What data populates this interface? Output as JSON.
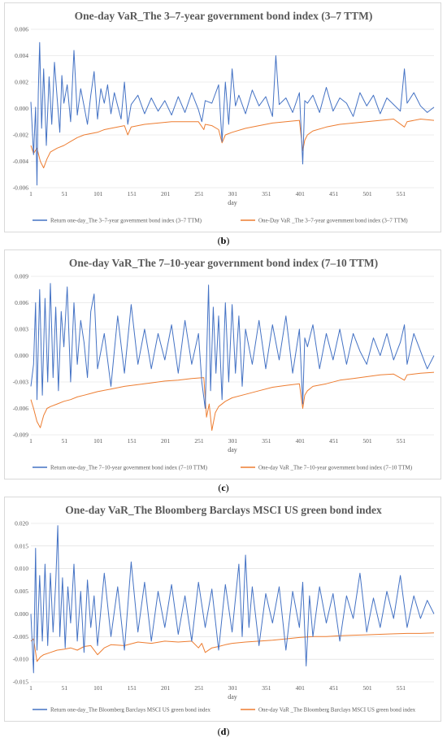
{
  "colors": {
    "return": "#4472C4",
    "var": "#ED7D31",
    "grid": "#d9d9d9",
    "text": "#595959"
  },
  "chart_data": [
    {
      "type": "line",
      "title": "One-day VaR_The 3–7-year government bond index (3–7 TTM)",
      "xlabel": "day",
      "ylabel": "",
      "xlim": [
        1,
        600
      ],
      "ylim": [
        -0.006,
        0.006
      ],
      "x_ticks": [
        "1",
        "51",
        "101",
        "151",
        "201",
        "251",
        "301",
        "351",
        "401",
        "451",
        "501",
        "551"
      ],
      "y_ticks": [
        "0.006",
        "0.004",
        "0.002",
        "0.000",
        "-0.002",
        "-0.004",
        "-0.006"
      ],
      "y_tick_values": [
        0.006,
        0.004,
        0.002,
        0.0,
        -0.002,
        -0.004,
        -0.006
      ],
      "grid": true,
      "legend": "bottom",
      "series": [
        {
          "name": "Return one-day_The 3–7-year government bond index (3–7 TTM)",
          "x": [
            1,
            5,
            8,
            10,
            12,
            14,
            17,
            20,
            24,
            28,
            32,
            36,
            40,
            44,
            47,
            50,
            55,
            60,
            65,
            70,
            75,
            80,
            85,
            90,
            95,
            100,
            105,
            110,
            115,
            120,
            125,
            130,
            135,
            140,
            145,
            150,
            160,
            170,
            180,
            190,
            200,
            210,
            220,
            230,
            240,
            250,
            255,
            260,
            270,
            280,
            285,
            290,
            295,
            300,
            305,
            310,
            320,
            330,
            340,
            350,
            360,
            365,
            370,
            380,
            390,
            400,
            405,
            408,
            412,
            420,
            430,
            440,
            450,
            460,
            470,
            480,
            490,
            500,
            510,
            520,
            530,
            540,
            550,
            556,
            560,
            570,
            580,
            590,
            600
          ],
          "values": [
            0.0005,
            -0.0035,
            0.0001,
            -0.0058,
            0.0012,
            0.005,
            -0.0015,
            0.003,
            -0.0028,
            0.0024,
            -0.0012,
            0.0035,
            0.0008,
            -0.0018,
            0.0025,
            0.0004,
            0.0018,
            -0.001,
            0.0044,
            -0.0005,
            0.0015,
            0.0002,
            -0.0012,
            0.001,
            0.0028,
            -0.0008,
            0.0015,
            0.0004,
            0.0018,
            -0.0004,
            0.0012,
            0.0002,
            -0.0008,
            0.002,
            -0.0012,
            0.0003,
            0.001,
            -0.0004,
            0.0008,
            -0.0002,
            0.0006,
            -0.0005,
            0.0009,
            -0.0003,
            0.0012,
            -0.0001,
            -0.001,
            0.0006,
            0.0004,
            0.0018,
            -0.0025,
            0.002,
            -0.0012,
            0.003,
            0.0002,
            0.001,
            -0.0004,
            0.0014,
            0.0002,
            0.0009,
            -0.0006,
            0.004,
            0.0003,
            0.0008,
            -0.0003,
            0.0012,
            -0.0042,
            0.0006,
            0.0004,
            0.001,
            -0.0003,
            0.0016,
            -0.0002,
            0.0008,
            0.0004,
            -0.0006,
            0.0012,
            0.0002,
            0.001,
            -0.0004,
            0.0008,
            0.0003,
            -0.0002,
            0.003,
            0.0004,
            0.0012,
            0.0002,
            -0.0003,
            0.0001
          ]
        },
        {
          "name": "One-Day VaR _The 3–7-year government bond index (3–7 TTM)",
          "x": [
            1,
            5,
            10,
            15,
            20,
            25,
            30,
            40,
            50,
            60,
            70,
            80,
            90,
            100,
            110,
            120,
            130,
            140,
            145,
            150,
            170,
            190,
            210,
            230,
            250,
            258,
            260,
            270,
            280,
            285,
            290,
            300,
            320,
            340,
            360,
            380,
            400,
            405,
            408,
            412,
            420,
            440,
            460,
            480,
            500,
            520,
            540,
            556,
            560,
            580,
            600
          ],
          "values": [
            -0.0028,
            -0.0034,
            -0.003,
            -0.004,
            -0.0045,
            -0.0038,
            -0.0033,
            -0.003,
            -0.0028,
            -0.0025,
            -0.0022,
            -0.002,
            -0.0019,
            -0.0018,
            -0.0016,
            -0.0015,
            -0.0014,
            -0.0013,
            -0.002,
            -0.0014,
            -0.0012,
            -0.0011,
            -0.001,
            -0.001,
            -0.001,
            -0.0016,
            -0.0012,
            -0.0013,
            -0.0016,
            -0.0026,
            -0.002,
            -0.0018,
            -0.0015,
            -0.0013,
            -0.0011,
            -0.001,
            -0.0009,
            -0.0032,
            -0.0024,
            -0.002,
            -0.0017,
            -0.0014,
            -0.0012,
            -0.0011,
            -0.001,
            -0.0009,
            -0.0008,
            -0.0014,
            -0.001,
            -0.0008,
            -0.0009
          ]
        }
      ]
    },
    {
      "type": "line",
      "title": "One-day VaR_The 7–10-year government bond index (7–10 TTM)",
      "xlabel": "day",
      "ylabel": "",
      "xlim": [
        1,
        600
      ],
      "ylim": [
        -0.009,
        0.009
      ],
      "x_ticks": [
        "1",
        "51",
        "101",
        "151",
        "201",
        "251",
        "301",
        "351",
        "401",
        "451",
        "501",
        "551"
      ],
      "y_ticks": [
        "0.009",
        "0.006",
        "0.003",
        "0.000",
        "-0.003",
        "-0.006",
        "-0.009"
      ],
      "y_tick_values": [
        0.009,
        0.006,
        0.003,
        0.0,
        -0.003,
        -0.006,
        -0.009
      ],
      "grid": true,
      "legend": "bottom",
      "series": [
        {
          "name": "Return one-day_The 7–10-year government bond index (7–10 TTM)",
          "x": [
            1,
            5,
            8,
            10,
            14,
            18,
            22,
            26,
            30,
            34,
            38,
            42,
            46,
            50,
            55,
            60,
            65,
            70,
            75,
            80,
            85,
            90,
            95,
            100,
            110,
            120,
            130,
            140,
            150,
            160,
            170,
            180,
            190,
            200,
            210,
            220,
            230,
            240,
            250,
            255,
            260,
            265,
            268,
            272,
            276,
            280,
            285,
            290,
            295,
            300,
            305,
            310,
            315,
            320,
            330,
            340,
            350,
            360,
            370,
            380,
            390,
            400,
            405,
            408,
            412,
            420,
            430,
            440,
            450,
            460,
            470,
            480,
            490,
            500,
            510,
            520,
            530,
            540,
            550,
            556,
            560,
            570,
            580,
            590,
            600
          ],
          "values": [
            -0.0035,
            -0.001,
            0.006,
            -0.005,
            0.0075,
            -0.0045,
            0.0065,
            -0.003,
            0.0082,
            -0.0025,
            0.0055,
            -0.004,
            0.005,
            0.001,
            0.0078,
            -0.003,
            0.006,
            -0.001,
            0.004,
            0.0015,
            -0.0025,
            0.005,
            0.007,
            -0.0015,
            0.0025,
            -0.0035,
            0.0045,
            -0.002,
            0.0058,
            -0.001,
            0.003,
            -0.0015,
            0.0025,
            -0.0005,
            0.0035,
            -0.002,
            0.004,
            -0.001,
            0.0025,
            -0.003,
            -0.006,
            0.008,
            -0.004,
            0.0055,
            -0.002,
            0.0045,
            -0.005,
            0.006,
            -0.003,
            0.0058,
            -0.002,
            0.0045,
            -0.0035,
            0.003,
            -0.001,
            0.004,
            -0.0015,
            0.0035,
            -0.0005,
            0.0045,
            -0.002,
            0.003,
            -0.0055,
            0.002,
            0.001,
            0.0035,
            -0.0015,
            0.0025,
            -0.0005,
            0.003,
            -0.001,
            0.0025,
            0.0005,
            -0.001,
            0.002,
            0.0,
            0.0025,
            -0.0005,
            0.0015,
            0.0035,
            -0.001,
            0.0025,
            0.0005,
            -0.0015,
            0.0
          ]
        },
        {
          "name": "One-day VaR _The 7–10-year government bond index (7–10 TTM)",
          "x": [
            1,
            5,
            10,
            15,
            20,
            25,
            30,
            40,
            50,
            60,
            70,
            80,
            90,
            100,
            120,
            140,
            160,
            180,
            200,
            220,
            240,
            258,
            262,
            266,
            270,
            275,
            280,
            290,
            300,
            320,
            340,
            360,
            380,
            400,
            405,
            408,
            412,
            420,
            440,
            460,
            480,
            500,
            520,
            540,
            556,
            560,
            580,
            600
          ],
          "values": [
            -0.005,
            -0.006,
            -0.0075,
            -0.0082,
            -0.0068,
            -0.006,
            -0.0058,
            -0.0055,
            -0.0052,
            -0.005,
            -0.0047,
            -0.0045,
            -0.0043,
            -0.0041,
            -0.0038,
            -0.0035,
            -0.0033,
            -0.0031,
            -0.0029,
            -0.0028,
            -0.0026,
            -0.0025,
            -0.007,
            -0.0055,
            -0.0085,
            -0.0065,
            -0.0058,
            -0.0052,
            -0.0048,
            -0.0044,
            -0.004,
            -0.0036,
            -0.0034,
            -0.0032,
            -0.006,
            -0.0045,
            -0.004,
            -0.0035,
            -0.0032,
            -0.0028,
            -0.0026,
            -0.0024,
            -0.0022,
            -0.0021,
            -0.0028,
            -0.0022,
            -0.002,
            -0.0019
          ]
        }
      ]
    },
    {
      "type": "line",
      "title": "One-day VaR_The Bloomberg Barclays MSCI US green bond index",
      "xlabel": "day",
      "ylabel": "",
      "xlim": [
        1,
        600
      ],
      "ylim": [
        -0.015,
        0.02
      ],
      "x_ticks": [
        "1",
        "51",
        "101",
        "151",
        "201",
        "251",
        "301",
        "351",
        "401",
        "451",
        "501",
        "551"
      ],
      "y_ticks": [
        "0.020",
        "0.015",
        "0.010",
        "0.005",
        "0.000",
        "-0.005",
        "-0.010",
        "-0.015"
      ],
      "y_tick_values": [
        0.02,
        0.015,
        0.01,
        0.005,
        0.0,
        -0.005,
        -0.01,
        -0.015
      ],
      "grid": true,
      "legend": "bottom",
      "series": [
        {
          "name": "Return one-day_The Bloomberg Barclays MSCI US green bond index",
          "x": [
            1,
            5,
            8,
            10,
            14,
            18,
            22,
            26,
            30,
            34,
            38,
            41,
            44,
            48,
            52,
            56,
            60,
            65,
            70,
            75,
            80,
            85,
            90,
            95,
            100,
            110,
            120,
            130,
            140,
            150,
            160,
            170,
            180,
            190,
            200,
            210,
            220,
            230,
            240,
            250,
            260,
            270,
            280,
            290,
            300,
            310,
            315,
            320,
            325,
            330,
            340,
            350,
            360,
            370,
            380,
            390,
            400,
            405,
            410,
            415,
            420,
            430,
            440,
            450,
            460,
            470,
            480,
            490,
            500,
            510,
            520,
            530,
            540,
            550,
            560,
            570,
            580,
            590,
            600
          ],
          "values": [
            0.0,
            -0.013,
            0.0145,
            -0.008,
            0.0085,
            -0.006,
            0.011,
            -0.007,
            0.009,
            -0.004,
            0.007,
            0.0195,
            -0.005,
            0.008,
            -0.0075,
            0.006,
            -0.002,
            0.011,
            -0.006,
            0.005,
            -0.0085,
            0.0075,
            -0.003,
            0.004,
            -0.007,
            0.009,
            -0.005,
            0.006,
            -0.008,
            0.0115,
            -0.004,
            0.007,
            -0.006,
            0.005,
            -0.003,
            0.0065,
            -0.0045,
            0.004,
            -0.006,
            0.007,
            -0.003,
            0.0055,
            -0.008,
            0.0065,
            -0.004,
            0.011,
            -0.005,
            0.013,
            -0.003,
            0.006,
            -0.007,
            0.0045,
            -0.002,
            0.006,
            -0.008,
            0.005,
            -0.003,
            0.007,
            -0.0115,
            0.004,
            -0.005,
            0.006,
            -0.002,
            0.0045,
            -0.006,
            0.004,
            -0.001,
            0.009,
            -0.004,
            0.0035,
            -0.003,
            0.005,
            -0.001,
            0.0085,
            -0.003,
            0.004,
            -0.001,
            0.003,
            0.0
          ]
        },
        {
          "name": "One-day VaR _The Bloomberg Barclays MSCI US green bond index",
          "x": [
            1,
            5,
            10,
            15,
            20,
            30,
            40,
            50,
            60,
            70,
            80,
            90,
            100,
            110,
            120,
            140,
            160,
            180,
            200,
            220,
            240,
            250,
            255,
            260,
            270,
            280,
            290,
            300,
            320,
            340,
            360,
            380,
            400,
            420,
            440,
            460,
            480,
            500,
            520,
            540,
            560,
            580,
            600
          ],
          "values": [
            -0.006,
            -0.0055,
            -0.0105,
            -0.0095,
            -0.009,
            -0.0085,
            -0.008,
            -0.0078,
            -0.0075,
            -0.008,
            -0.0072,
            -0.007,
            -0.009,
            -0.0075,
            -0.0068,
            -0.007,
            -0.0062,
            -0.0065,
            -0.006,
            -0.0062,
            -0.006,
            -0.0075,
            -0.0065,
            -0.0085,
            -0.0075,
            -0.0072,
            -0.0068,
            -0.0065,
            -0.0062,
            -0.006,
            -0.0058,
            -0.0055,
            -0.0052,
            -0.005,
            -0.005,
            -0.0048,
            -0.0047,
            -0.0046,
            -0.0045,
            -0.0044,
            -0.0043,
            -0.0043,
            -0.0042
          ]
        }
      ]
    }
  ],
  "captions": [
    "b",
    "c",
    "d"
  ]
}
